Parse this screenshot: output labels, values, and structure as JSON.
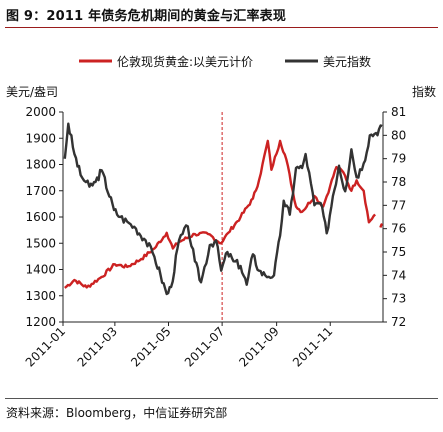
{
  "title": "图 9：2011 年债务危机期间的黄金与汇率表现",
  "source": "资料来源：Bloomberg，中信证券研究部",
  "chart_data": {
    "type": "line",
    "left_axis": {
      "label": "美元/盎司",
      "range": [
        1200,
        2000
      ],
      "ticks": [
        "1200",
        "1300",
        "1400",
        "1500",
        "1600",
        "1700",
        "1800",
        "1900",
        "2000"
      ]
    },
    "right_axis": {
      "label": "指数",
      "range": [
        72,
        81
      ],
      "ticks": [
        "72",
        "73",
        "74",
        "75",
        "76",
        "77",
        "78",
        "79",
        "80",
        "81"
      ]
    },
    "x_axis": {
      "range": [
        "2011-01-01",
        "2011-12-31"
      ],
      "ticks": [
        "2011-01",
        "2011-03",
        "2011-05",
        "2011-07",
        "2011-09",
        "2011-11"
      ]
    },
    "annotation": {
      "type": "vertical-dashed-line",
      "date": "2011-07-01",
      "color": "#cc2222"
    },
    "legend_position": "top",
    "series": [
      {
        "name": "伦敦现货黄金:以美元计价",
        "axis": "left",
        "color": "#cc2222",
        "points": [
          [
            "2011-01-03",
            1330
          ],
          [
            "2011-01-14",
            1360
          ],
          [
            "2011-01-28",
            1332
          ],
          [
            "2011-02-14",
            1372
          ],
          [
            "2011-03-01",
            1420
          ],
          [
            "2011-03-15",
            1410
          ],
          [
            "2011-03-31",
            1440
          ],
          [
            "2011-04-15",
            1480
          ],
          [
            "2011-04-29",
            1540
          ],
          [
            "2011-05-06",
            1480
          ],
          [
            "2011-05-13",
            1505
          ],
          [
            "2011-05-31",
            1535
          ],
          [
            "2011-06-15",
            1535
          ],
          [
            "2011-06-30",
            1500
          ],
          [
            "2011-07-08",
            1540
          ],
          [
            "2011-07-22",
            1600
          ],
          [
            "2011-08-05",
            1670
          ],
          [
            "2011-08-12",
            1740
          ],
          [
            "2011-08-22",
            1890
          ],
          [
            "2011-08-26",
            1780
          ],
          [
            "2011-09-05",
            1890
          ],
          [
            "2011-09-12",
            1820
          ],
          [
            "2011-09-23",
            1640
          ],
          [
            "2011-09-30",
            1620
          ],
          [
            "2011-10-14",
            1680
          ],
          [
            "2011-10-24",
            1640
          ],
          [
            "2011-11-01",
            1720
          ],
          [
            "2011-11-08",
            1790
          ],
          [
            "2011-11-16",
            1770
          ],
          [
            "2011-11-25",
            1700
          ],
          [
            "2011-12-01",
            1740
          ],
          [
            "2011-12-09",
            1700
          ],
          [
            "2011-12-15",
            1580
          ],
          [
            "2011-12-22",
            1610
          ]
        ],
        "trailing_points": [
          [
            "2011-12-28",
            1560
          ],
          [
            "2011-12-30",
            1575
          ]
        ]
      },
      {
        "name": "美元指数",
        "axis": "right",
        "color": "#333333",
        "points": [
          [
            "2011-01-03",
            79.0
          ],
          [
            "2011-01-07",
            80.5
          ],
          [
            "2011-01-14",
            79.2
          ],
          [
            "2011-01-21",
            78.3
          ],
          [
            "2011-01-31",
            77.8
          ],
          [
            "2011-02-07",
            78.0
          ],
          [
            "2011-02-14",
            78.5
          ],
          [
            "2011-02-28",
            76.8
          ],
          [
            "2011-03-07",
            76.5
          ],
          [
            "2011-03-15",
            76.3
          ],
          [
            "2011-03-25",
            76.0
          ],
          [
            "2011-04-05",
            75.5
          ],
          [
            "2011-04-15",
            74.8
          ],
          [
            "2011-04-22",
            74.0
          ],
          [
            "2011-04-29",
            73.2
          ],
          [
            "2011-05-04",
            73.5
          ],
          [
            "2011-05-13",
            75.5
          ],
          [
            "2011-05-23",
            76.1
          ],
          [
            "2011-05-31",
            74.6
          ],
          [
            "2011-06-07",
            73.7
          ],
          [
            "2011-06-17",
            75.3
          ],
          [
            "2011-06-24",
            75.5
          ],
          [
            "2011-06-30",
            74.2
          ],
          [
            "2011-07-07",
            75.0
          ],
          [
            "2011-07-14",
            74.6
          ],
          [
            "2011-07-22",
            74.4
          ],
          [
            "2011-07-29",
            73.6
          ],
          [
            "2011-08-05",
            74.9
          ],
          [
            "2011-08-12",
            74.2
          ],
          [
            "2011-08-19",
            74.0
          ],
          [
            "2011-08-29",
            74.0
          ],
          [
            "2011-09-05",
            75.7
          ],
          [
            "2011-09-09",
            77.2
          ],
          [
            "2011-09-16",
            76.6
          ],
          [
            "2011-09-23",
            78.6
          ],
          [
            "2011-09-30",
            78.6
          ],
          [
            "2011-10-04",
            79.2
          ],
          [
            "2011-10-14",
            77.0
          ],
          [
            "2011-10-21",
            77.1
          ],
          [
            "2011-10-28",
            75.8
          ],
          [
            "2011-11-04",
            77.4
          ],
          [
            "2011-11-11",
            78.7
          ],
          [
            "2011-11-18",
            77.6
          ],
          [
            "2011-11-25",
            79.4
          ],
          [
            "2011-12-01",
            78.2
          ],
          [
            "2011-12-09",
            78.8
          ],
          [
            "2011-12-16",
            80.0
          ],
          [
            "2011-12-23",
            80.1
          ],
          [
            "2011-12-30",
            80.4
          ]
        ]
      }
    ]
  }
}
